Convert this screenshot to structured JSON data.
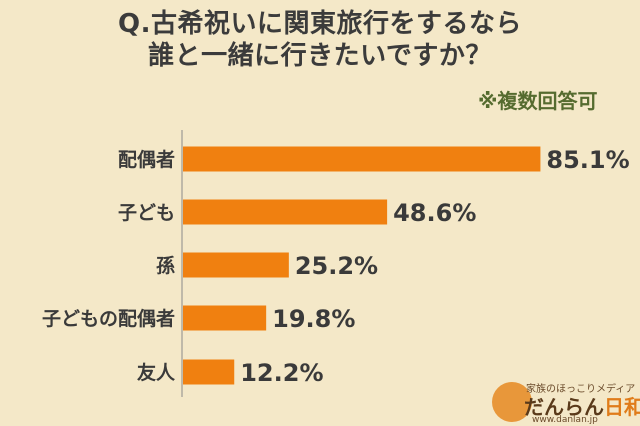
{
  "header": {
    "title_line1": "Q.古希祝いに関東旅行をするなら",
    "title_line2": "誰と一緒に行きたいですか？",
    "note": "※複数回答可"
  },
  "chart_data": {
    "type": "bar",
    "orientation": "horizontal",
    "categories": [
      "配偶者",
      "子ども",
      "孫",
      "子どもの配偶者",
      "友人"
    ],
    "values": [
      85.1,
      48.6,
      25.2,
      19.8,
      12.2
    ],
    "value_labels": [
      "85.1%",
      "48.6%",
      "25.2%",
      "19.8%",
      "12.2%"
    ],
    "unit": "%",
    "xlim": [
      0,
      100
    ],
    "bar_color": "#f08010",
    "grid": false
  },
  "logo": {
    "tagline": "家族のほっこりメディア",
    "name_part1": "だんらん",
    "name_part2": "日和",
    "url": "www.danlan.jp"
  }
}
